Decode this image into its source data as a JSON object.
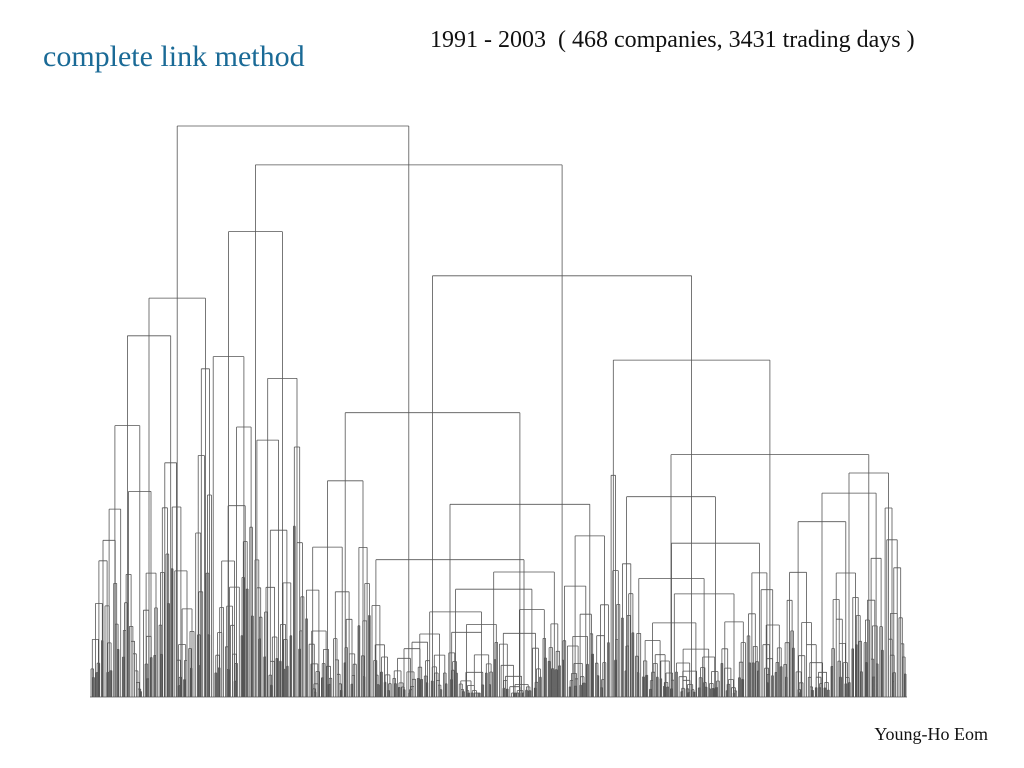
{
  "slide": {
    "title": "complete link method",
    "subtitle": "1991 - 2003  ( 468 companies, 3431 trading days )",
    "author": "Young-Ho Eom"
  }
}
